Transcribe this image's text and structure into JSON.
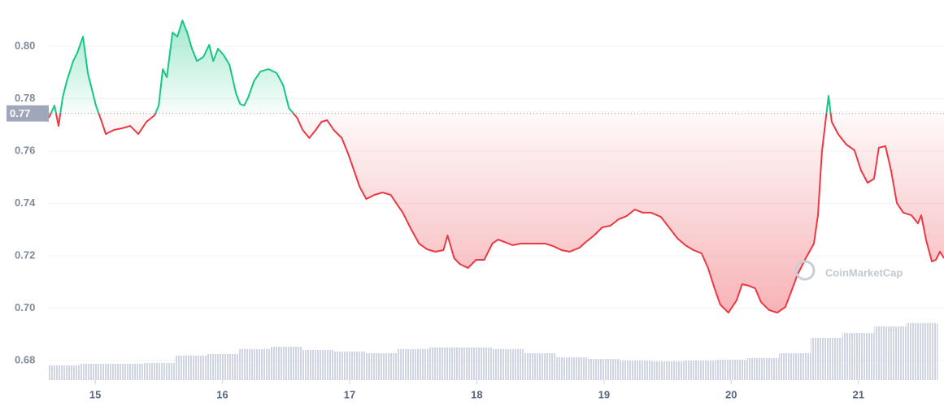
{
  "chart_data": {
    "type": "line",
    "x": [
      14.635,
      14.68,
      14.712,
      14.744,
      14.776,
      14.827,
      14.859,
      14.904,
      14.942,
      15.006,
      15.051,
      15.083,
      15.147,
      15.211,
      15.275,
      15.339,
      15.403,
      15.467,
      15.499,
      15.531,
      15.563,
      15.608,
      15.646,
      15.685,
      15.723,
      15.761,
      15.8,
      15.851,
      15.896,
      15.928,
      15.966,
      16.011,
      16.056,
      16.107,
      16.139,
      16.171,
      16.203,
      16.248,
      16.299,
      16.363,
      16.427,
      16.478,
      16.523,
      16.587,
      16.631,
      16.683,
      16.734,
      16.779,
      16.823,
      16.875,
      16.939,
      16.99,
      17.035,
      17.079,
      17.131,
      17.195,
      17.259,
      17.323,
      17.374,
      17.418,
      17.482,
      17.546,
      17.61,
      17.674,
      17.738,
      17.77,
      17.822,
      17.866,
      17.93,
      17.994,
      18.058,
      18.122,
      18.167,
      18.218,
      18.282,
      18.346,
      18.41,
      18.474,
      18.538,
      18.602,
      18.666,
      18.73,
      18.807,
      18.858,
      18.922,
      18.986,
      19.05,
      19.114,
      19.178,
      19.242,
      19.306,
      19.37,
      19.447,
      19.511,
      19.575,
      19.639,
      19.703,
      19.767,
      19.818,
      19.869,
      19.914,
      19.978,
      20.042,
      20.086,
      20.138,
      20.189,
      20.234,
      20.298,
      20.362,
      20.426,
      20.47,
      20.522,
      20.586,
      20.65,
      20.682,
      20.713,
      20.745,
      20.765,
      20.79,
      20.841,
      20.905,
      20.969,
      21.021,
      21.072,
      21.123,
      21.161,
      21.213,
      21.257,
      21.302,
      21.353,
      21.417,
      21.468,
      21.494,
      21.532,
      21.577,
      21.609,
      21.641,
      21.673
    ],
    "values": [
      0.7727,
      0.7774,
      0.7696,
      0.7805,
      0.7867,
      0.7944,
      0.7975,
      0.8037,
      0.7898,
      0.7774,
      0.7712,
      0.7665,
      0.7681,
      0.7687,
      0.7696,
      0.7665,
      0.7712,
      0.7737,
      0.7774,
      0.7913,
      0.7882,
      0.8053,
      0.8037,
      0.8099,
      0.8053,
      0.7991,
      0.7944,
      0.796,
      0.8006,
      0.7944,
      0.7991,
      0.7966,
      0.7929,
      0.782,
      0.778,
      0.7774,
      0.7805,
      0.7867,
      0.7904,
      0.7913,
      0.7898,
      0.7851,
      0.7764,
      0.7727,
      0.7681,
      0.765,
      0.7681,
      0.7712,
      0.7718,
      0.7681,
      0.765,
      0.7588,
      0.7526,
      0.7464,
      0.7417,
      0.7433,
      0.7442,
      0.7433,
      0.7396,
      0.7365,
      0.7303,
      0.7247,
      0.7225,
      0.7216,
      0.7222,
      0.7278,
      0.7191,
      0.7169,
      0.7154,
      0.7185,
      0.7185,
      0.7247,
      0.7262,
      0.7253,
      0.7241,
      0.7247,
      0.7247,
      0.7247,
      0.7247,
      0.7237,
      0.7222,
      0.7216,
      0.7231,
      0.7253,
      0.7278,
      0.7309,
      0.7315,
      0.734,
      0.7352,
      0.7377,
      0.7365,
      0.7365,
      0.7349,
      0.7309,
      0.7268,
      0.7241,
      0.7222,
      0.721,
      0.7154,
      0.7076,
      0.7014,
      0.6983,
      0.703,
      0.7092,
      0.7086,
      0.7076,
      0.7024,
      0.6993,
      0.6983,
      0.7005,
      0.7061,
      0.7129,
      0.7191,
      0.7247,
      0.7355,
      0.7594,
      0.7727,
      0.7811,
      0.7712,
      0.7665,
      0.7625,
      0.7603,
      0.7526,
      0.7479,
      0.7495,
      0.7613,
      0.7619,
      0.7526,
      0.7402,
      0.7365,
      0.7355,
      0.7324,
      0.7355,
      0.7262,
      0.7179,
      0.7185,
      0.7216,
      0.7191
    ],
    "colors": {
      "up": "#16c784",
      "down": "#ea3943"
    },
    "reference": {
      "value": 0.7744,
      "label": "0.77"
    },
    "volume": {
      "x": [
        14.75,
        15.0,
        15.25,
        15.5,
        15.75,
        16.0,
        16.25,
        16.5,
        16.75,
        17.0,
        17.25,
        17.5,
        17.75,
        18.0,
        18.25,
        18.5,
        18.75,
        19.0,
        19.25,
        19.5,
        19.75,
        20.0,
        20.25,
        20.5,
        20.75,
        21.0,
        21.25,
        21.5
      ],
      "values": [
        18,
        20,
        20,
        21,
        30,
        32,
        38,
        41,
        37,
        35,
        33,
        38,
        40,
        40,
        38,
        33,
        28,
        26,
        24,
        23,
        24,
        25,
        27,
        33,
        52,
        58,
        66,
        70
      ],
      "color": "#cfd5e3"
    },
    "xlim": [
      14.635,
      21.673
    ],
    "xticks": [
      15,
      16,
      17,
      18,
      19,
      20,
      21
    ],
    "ylim": [
      0.6726,
      0.8177
    ],
    "yticks": [
      {
        "value": 0.8,
        "label": "0.80"
      },
      0.78,
      0.76,
      0.74,
      0.72,
      {
        "value": 0.7,
        "label": "0.70"
      },
      0.68
    ],
    "grid": true,
    "watermark": "CoinMarketCap"
  }
}
